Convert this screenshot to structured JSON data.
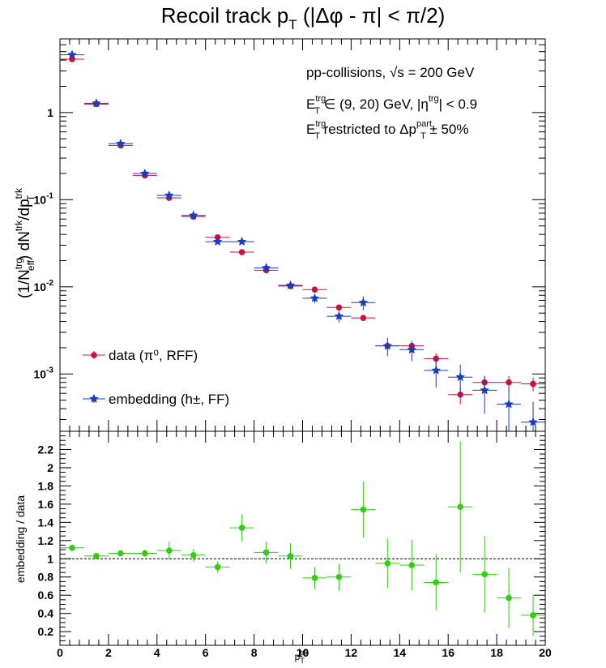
{
  "title": {
    "main": "Recoil track p",
    "sub": "T",
    "rest": " (|Δφ - π| < π/2)"
  },
  "annotations": [
    {
      "parts": [
        [
          "n",
          "pp-collisions, "
        ],
        [
          "n",
          "√s"
        ],
        [
          "n",
          " = 200 GeV"
        ]
      ]
    },
    {
      "parts": [
        [
          "n",
          "E"
        ],
        [
          "sup",
          "trg"
        ],
        [
          "sub",
          "T"
        ],
        [
          "n",
          " ∈ (9, 20) GeV, |η"
        ],
        [
          "sup",
          "trg"
        ],
        [
          "n",
          "| < 0.9"
        ]
      ]
    },
    {
      "parts": [
        [
          "n",
          "E"
        ],
        [
          "sup",
          "trg"
        ],
        [
          "sub",
          "T"
        ],
        [
          "n",
          " restricted to Δp"
        ],
        [
          "sup",
          "part"
        ],
        [
          "sub",
          "T"
        ],
        [
          "n",
          " ± 50%"
        ]
      ]
    }
  ],
  "legend": [
    {
      "label": "data (π⁰, RFF)",
      "color": "#c8103f",
      "marker": "circle"
    },
    {
      "label": "embedding (h±, FF)",
      "color": "#1a3bbf",
      "marker": "star"
    }
  ],
  "top_ylabel": "(1/N_eff^trg) dN^trk/dp_T^trk",
  "bottom_ylabel": "embedding / data",
  "xlabel": "p_T^trk",
  "top_yticks": [
    "1",
    "10⁻¹",
    "10⁻²",
    "10⁻³"
  ],
  "bottom_yticks": [
    "0.2",
    "0.4",
    "0.6",
    "0.8",
    "1",
    "1.2",
    "1.4",
    "1.6",
    "1.8",
    "2",
    "2.2"
  ],
  "xticks": [
    "0",
    "2",
    "4",
    "6",
    "8",
    "10",
    "12",
    "14",
    "16",
    "18",
    "20"
  ],
  "chart_data": [
    {
      "type": "scatter",
      "panel": "spectrum",
      "yscale": "log",
      "xlim": [
        0,
        20
      ],
      "ylim": [
        0.00022,
        7.0
      ],
      "x": [
        0.5,
        1.5,
        2.5,
        3.5,
        4.5,
        5.5,
        6.5,
        7.5,
        8.5,
        9.5,
        10.5,
        11.5,
        12.5,
        13.5,
        14.5,
        15.5,
        16.5,
        17.5,
        18.5,
        19.5
      ],
      "xerr": 0.5,
      "series": [
        {
          "name": "data (π⁰, RFF)",
          "color": "#c8103f",
          "marker": "circle",
          "values": [
            4.1,
            1.25,
            0.42,
            0.19,
            0.105,
            0.064,
            0.037,
            0.025,
            0.0155,
            0.0102,
            0.0093,
            0.0058,
            0.0044,
            0.0021,
            0.0021,
            0.0015,
            0.00058,
            0.0008,
            0.0008,
            0.00077
          ],
          "yerr": [
            0,
            0,
            0,
            0,
            0,
            0,
            0,
            0,
            0,
            0,
            0,
            0.0003,
            0.0003,
            0.0002,
            0.0002,
            0.00023,
            0.00013,
            0.00015,
            0.00015,
            0.00014
          ]
        },
        {
          "name": "embedding (h±, FF)",
          "color": "#1a3bbf",
          "marker": "star",
          "values": [
            4.6,
            1.28,
            0.44,
            0.2,
            0.112,
            0.066,
            0.033,
            0.033,
            0.0165,
            0.0104,
            0.0074,
            0.0046,
            0.0066,
            0.0021,
            0.0019,
            0.0011,
            0.00092,
            0.00065,
            0.00045,
            0.00028
          ],
          "yerr": [
            0,
            0,
            0,
            0,
            0,
            0,
            0.002,
            0.002,
            0.001,
            0.0008,
            0.0009,
            0.0007,
            0.0012,
            0.0005,
            0.0005,
            0.0004,
            0.00036,
            0.0003,
            0.00025,
            0.0002
          ]
        }
      ]
    },
    {
      "type": "scatter",
      "panel": "ratio",
      "xlim": [
        0,
        20
      ],
      "ylim": [
        0.05,
        2.4
      ],
      "reference_line": 1,
      "x": [
        0.5,
        1.5,
        2.5,
        3.5,
        4.5,
        5.5,
        6.5,
        7.5,
        8.5,
        9.5,
        10.5,
        11.5,
        12.5,
        13.5,
        14.5,
        15.5,
        16.5,
        17.5,
        18.5,
        19.5
      ],
      "xerr": 0.5,
      "series": [
        {
          "color": "#33cc11",
          "marker": "circle",
          "values": [
            1.12,
            1.03,
            1.06,
            1.06,
            1.09,
            1.04,
            0.91,
            1.34,
            1.07,
            1.03,
            0.79,
            0.8,
            1.54,
            0.95,
            0.93,
            0.74,
            1.57,
            0.83,
            0.57,
            0.38
          ],
          "yerr": [
            0.02,
            0.02,
            0.03,
            0.04,
            0.1,
            0.07,
            0.06,
            0.15,
            0.12,
            0.14,
            0.12,
            0.15,
            0.31,
            0.27,
            0.28,
            0.31,
            0.72,
            0.42,
            0.33,
            0.23
          ]
        }
      ]
    }
  ]
}
